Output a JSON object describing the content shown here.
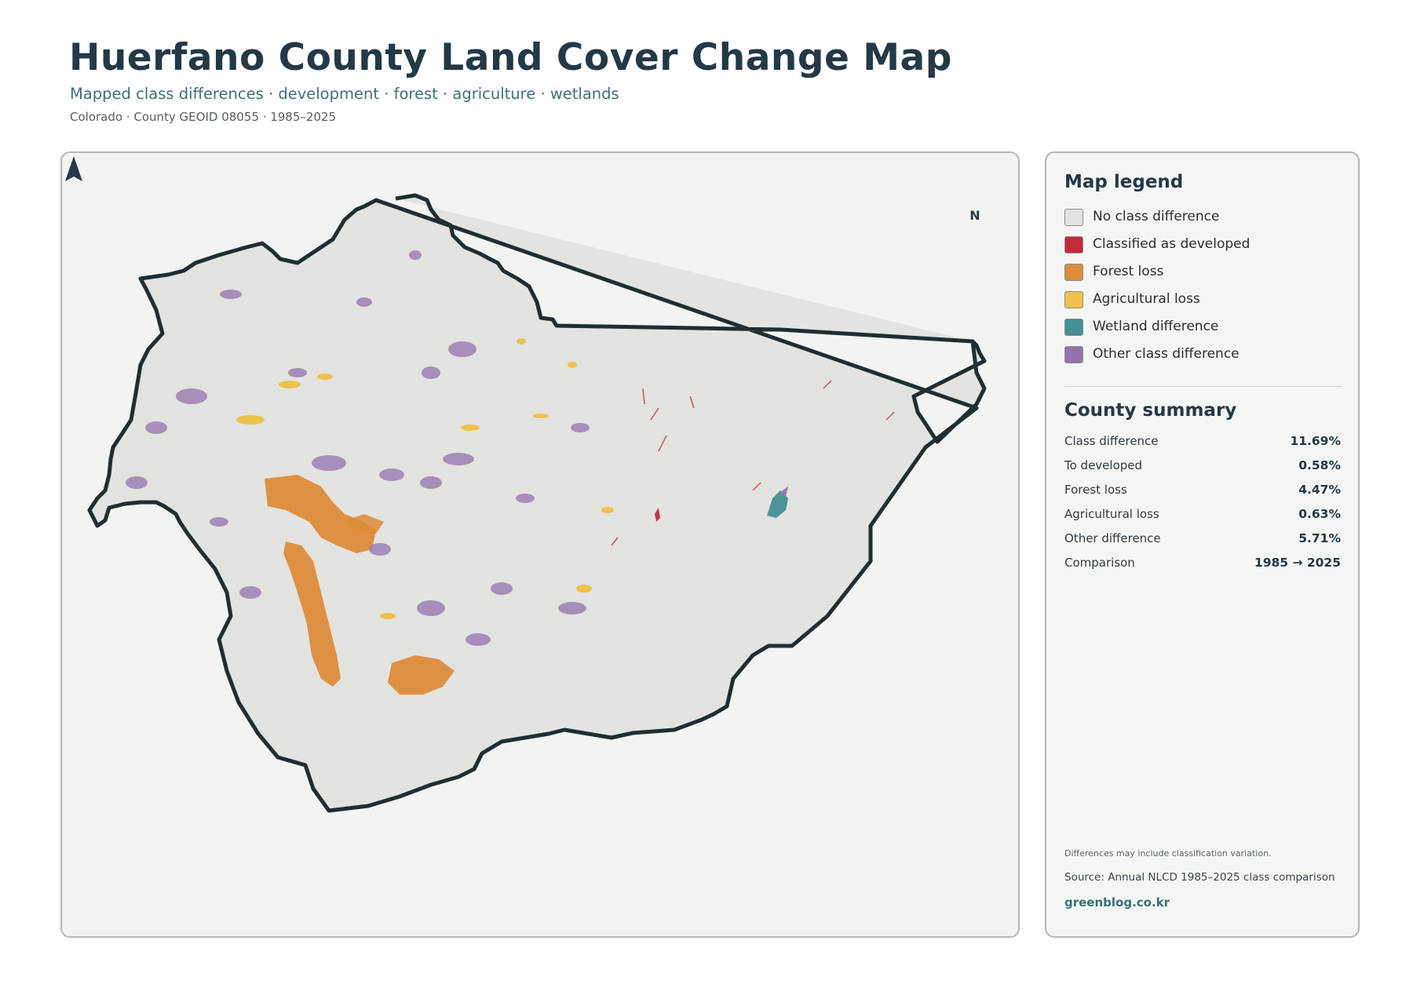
{
  "header": {
    "title": "Huerfano County Land Cover Change Map",
    "subtitle": "Mapped class differences · development · forest · agriculture · wetlands",
    "meta": "Colorado · County GEOID 08055 · 1985–2025"
  },
  "map": {
    "north_label": "N",
    "colors": {
      "background": "#f3f3f1",
      "county_fill": "#e3e3df",
      "outline": "#1f2e33",
      "developed": "#c62a3a",
      "forest_loss": "#de8c3a",
      "agricultural_loss": "#eec24a",
      "wetland": "#448f96",
      "other": "#9273ad"
    }
  },
  "legend": {
    "title": "Map legend",
    "items": [
      {
        "label": "No class difference",
        "color": "#e3e3df"
      },
      {
        "label": "Classified as developed",
        "color": "#c62a3a"
      },
      {
        "label": "Forest loss",
        "color": "#de8c3a"
      },
      {
        "label": "Agricultural loss",
        "color": "#eec24a"
      },
      {
        "label": "Wetland difference",
        "color": "#448f96"
      },
      {
        "label": "Other class difference",
        "color": "#9273ad"
      }
    ]
  },
  "summary": {
    "title": "County summary",
    "rows": [
      {
        "label": "Class difference",
        "value": "11.69%"
      },
      {
        "label": "To developed",
        "value": "0.58%"
      },
      {
        "label": "Forest loss",
        "value": "4.47%"
      },
      {
        "label": "Agricultural loss",
        "value": "0.63%"
      },
      {
        "label": "Other difference",
        "value": "5.71%"
      },
      {
        "label": "Comparison",
        "value": "1985 → 2025"
      }
    ]
  },
  "footer": {
    "note": "Differences may include classification variation.",
    "source": "Source: Annual NLCD 1985–2025 class comparison",
    "brand": "greenblog.co.kr"
  }
}
